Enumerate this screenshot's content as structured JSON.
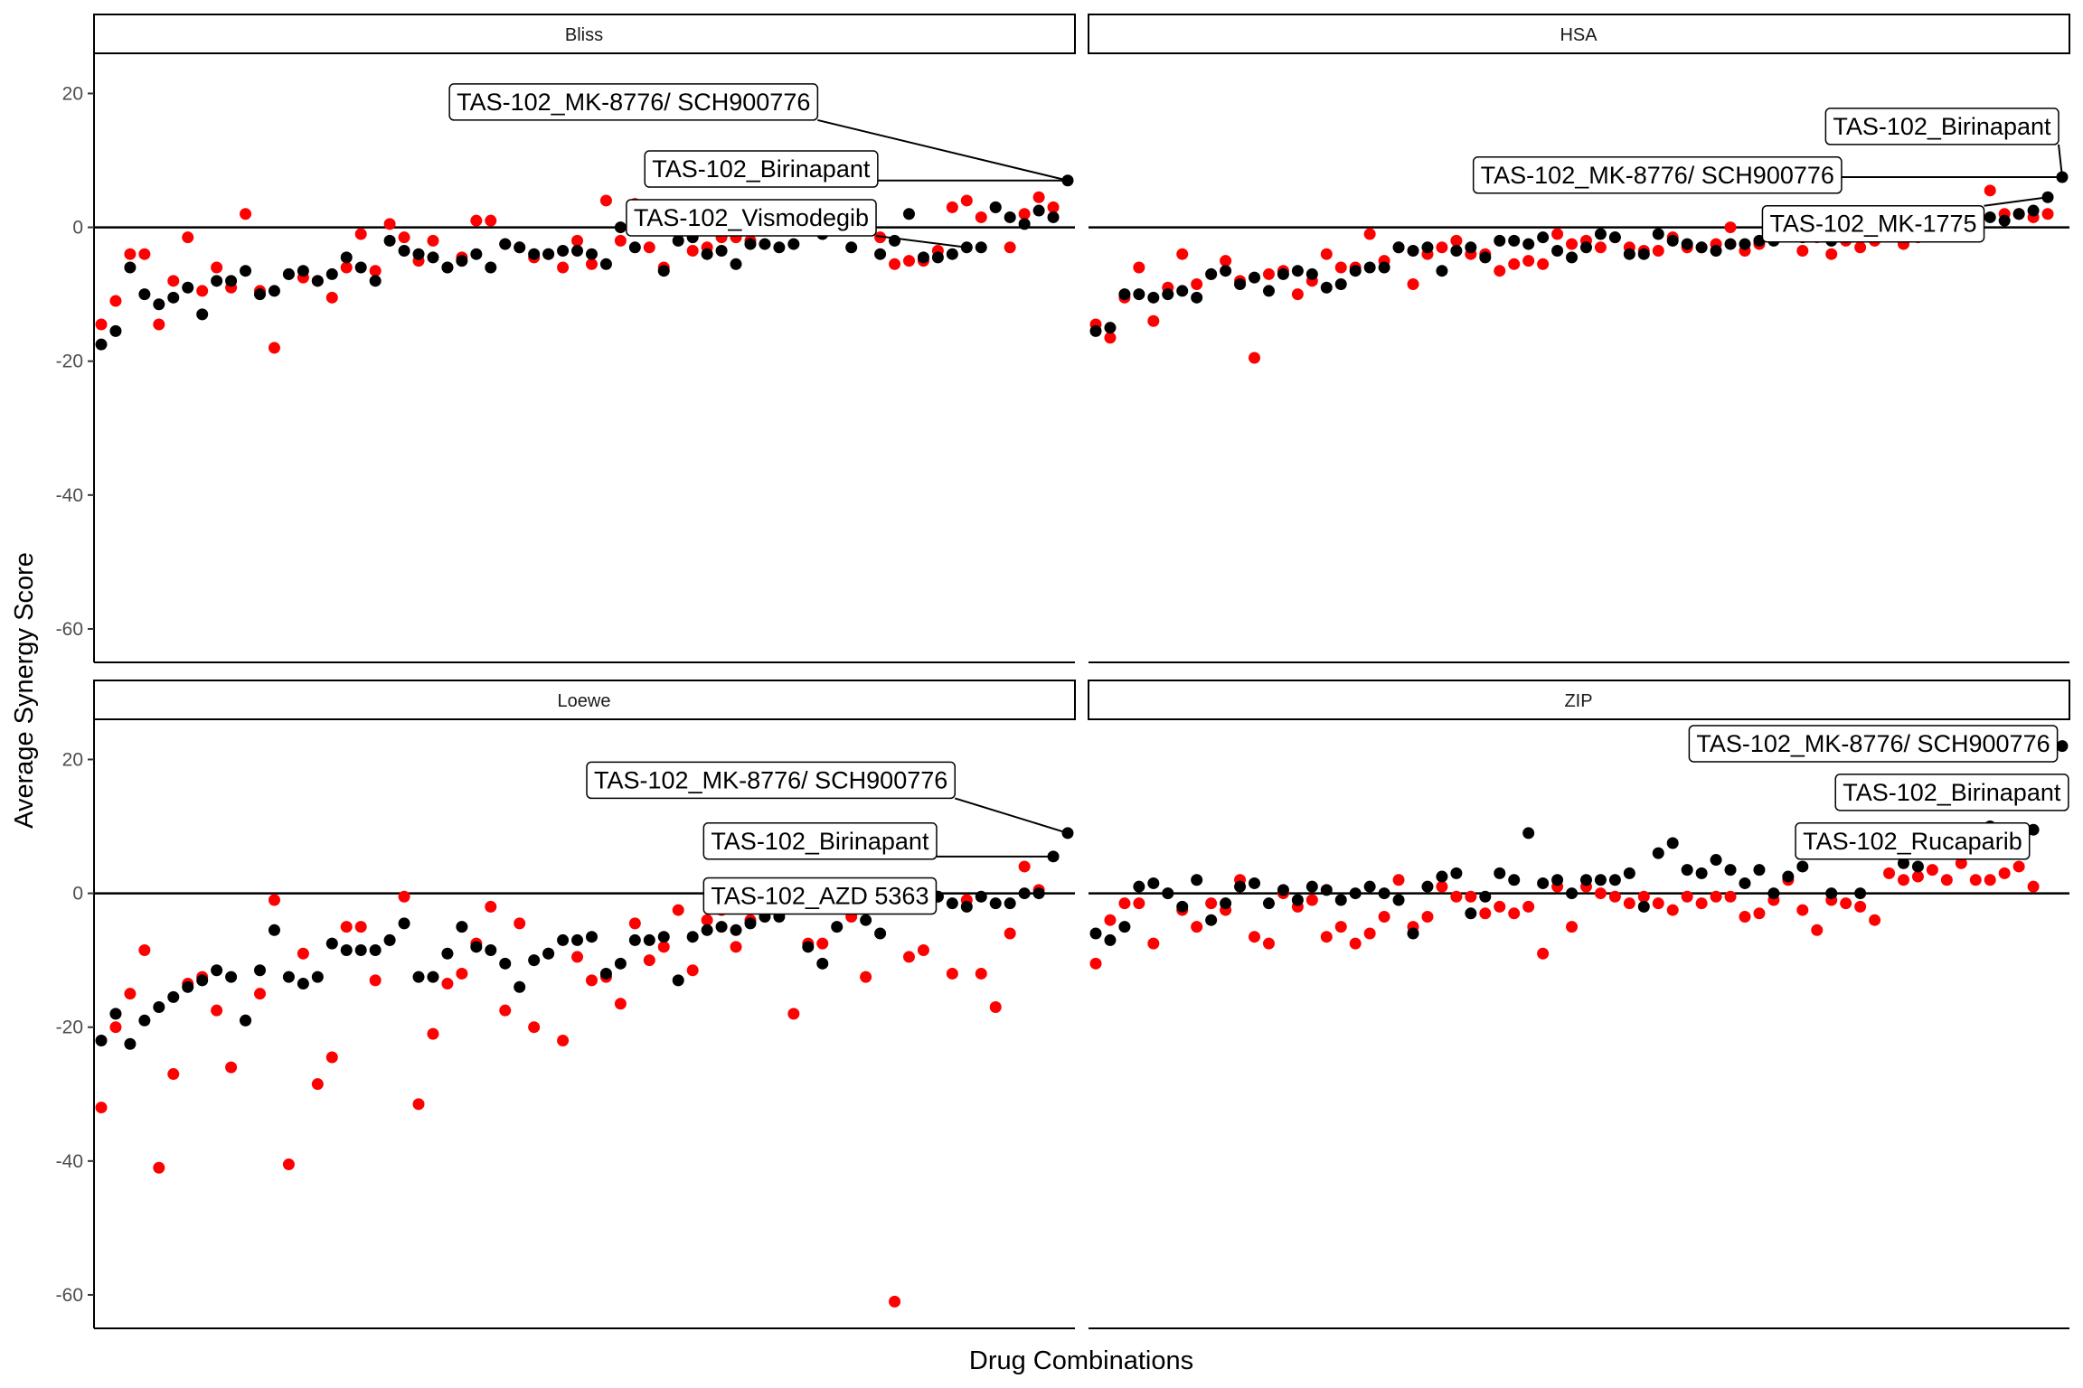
{
  "figure": {
    "xlabel": "Drug Combinations",
    "ylabel": "Average Synergy Score",
    "ylim": [
      -65,
      26
    ],
    "yticks": [
      20,
      0,
      -20,
      -40,
      -60
    ],
    "ytick_labels": [
      "20",
      "0",
      "-20",
      "-40",
      "-60"
    ],
    "x_count": 68,
    "series_colors": {
      "first": "#000000",
      "second": "#ff0000"
    },
    "hline": 0
  },
  "chart_data": [
    {
      "type": "scatter",
      "panel": "Bliss",
      "title": "Bliss",
      "series": [
        {
          "color": "#000000",
          "values": [
            -17.5,
            -15.5,
            -6,
            -10,
            -11.5,
            -10.5,
            -9,
            -13,
            -8,
            -8,
            -6.5,
            -10,
            -9.5,
            -7,
            -6.5,
            -8,
            -7,
            -4.5,
            -6,
            -8,
            -2,
            -3.5,
            -4,
            -4.5,
            -6,
            -5,
            -4,
            -6,
            -2.5,
            -3,
            -4,
            -4,
            -3.5,
            -3.5,
            -4,
            -5.5,
            0,
            -3,
            0,
            -6.5,
            -2,
            -1.5,
            -4,
            -3.5,
            -5.5,
            -2.5,
            -2.5,
            -3,
            -2.5,
            2,
            -1,
            2,
            -3,
            1.5,
            -4,
            -2,
            2,
            -4.5,
            -4.5,
            -4,
            -3,
            -3,
            3,
            1.5,
            0.5,
            2.5,
            1.5,
            7
          ]
        },
        {
          "color": "#ff0000",
          "values": [
            -14.5,
            -11,
            -4,
            -4,
            -14.5,
            -8,
            -1.5,
            -9.5,
            -6,
            -9,
            2,
            -9.5,
            -18,
            -7,
            -7.5,
            -8,
            -10.5,
            -6,
            -1,
            -6.5,
            0.5,
            -1.5,
            -5,
            -2,
            -6,
            -4.5,
            1,
            1,
            -2.5,
            -3,
            -4.5,
            -4,
            -6,
            -2,
            -5.5,
            4,
            -2,
            3.5,
            -3,
            -6,
            0.5,
            -3.5,
            -3,
            -1.5,
            -1.5,
            -2,
            2,
            1.5,
            2.5,
            3,
            1.5,
            3,
            2.5,
            3,
            -1.5,
            -5.5,
            -5,
            -5,
            -3.5,
            3,
            4,
            1.5,
            3,
            -3,
            2,
            4.5,
            3
          ]
        }
      ],
      "labels": [
        "TAS-102_MK-8776/ SCH900776",
        "TAS-102_Birinapant",
        "TAS-102_Vismodegib"
      ]
    },
    {
      "type": "scatter",
      "panel": "HSA",
      "title": "HSA",
      "series": [
        {
          "color": "#000000",
          "values": [
            -15.5,
            -15,
            -10,
            -10,
            -10.5,
            -10,
            -9.5,
            -10.5,
            -7,
            -6.5,
            -8.5,
            -7.5,
            -9.5,
            -7,
            -6.5,
            -7,
            -9,
            -8.5,
            -6.5,
            -6,
            -6,
            -3,
            -3.5,
            -3,
            -6.5,
            -3.5,
            -3,
            -4.5,
            -2,
            -2,
            -2.5,
            -1.5,
            -3.5,
            -4.5,
            -3,
            -1,
            -1.5,
            -4,
            -4,
            -1,
            -2,
            -2.5,
            -3,
            -3.5,
            -2.5,
            -2.5,
            -2,
            -2,
            -1,
            -1.5,
            0.5,
            -2,
            -1.5,
            -1,
            0,
            -1,
            -0.5,
            0,
            0.5,
            1,
            0,
            0.5,
            1.5,
            1,
            2,
            2.5,
            4.5,
            7.5
          ]
        },
        {
          "color": "#ff0000",
          "values": [
            -14.5,
            -16.5,
            -10.5,
            -6,
            -14,
            -9,
            -4,
            -8.5,
            -7,
            -5,
            -8,
            -19.5,
            -7,
            -6.5,
            -10,
            -8,
            -4,
            -6,
            -6,
            -1,
            -5,
            -3,
            -8.5,
            -4,
            -3,
            -2,
            -4,
            -4,
            -6.5,
            -5.5,
            -5,
            -5.5,
            -1,
            -2.5,
            -2,
            -3,
            -1.5,
            -3,
            -3.5,
            -3.5,
            -1.5,
            -3,
            -3,
            -2.5,
            0,
            -3.5,
            -2.5,
            -1.5,
            1,
            -3.5,
            -1.5,
            -4,
            -2,
            -3,
            -2,
            0.5,
            -2.5,
            -1.5,
            1,
            1,
            1.5,
            2,
            5.5,
            2,
            2,
            1.5,
            2
          ]
        }
      ],
      "labels": [
        "TAS-102_Birinapant",
        "TAS-102_MK-8776/ SCH900776",
        "TAS-102_MK-1775"
      ]
    },
    {
      "type": "scatter",
      "panel": "Loewe",
      "title": "Loewe",
      "series": [
        {
          "color": "#000000",
          "values": [
            -22,
            -18,
            -22.5,
            -19,
            -17,
            -15.5,
            -14,
            -13,
            -11.5,
            -12.5,
            -19,
            -11.5,
            -5.5,
            -12.5,
            -13.5,
            -12.5,
            -7.5,
            -8.5,
            -8.5,
            -8.5,
            -7,
            -4.5,
            -12.5,
            -12.5,
            -9,
            -5,
            -8,
            -8.5,
            -10.5,
            -14,
            -10,
            -9,
            -7,
            -7,
            -6.5,
            -12,
            -10.5,
            -7,
            -7,
            -6.5,
            -13,
            -6.5,
            -5.5,
            -5,
            -5.5,
            -4.5,
            -3.5,
            -3.5,
            -2,
            -8,
            -10.5,
            -5,
            -2,
            -4,
            -6,
            -2,
            -2,
            -1,
            -0.5,
            -1.5,
            -2,
            -0.5,
            -1.5,
            -1.5,
            0,
            0,
            5.5,
            9
          ]
        },
        {
          "color": "#ff0000",
          "values": [
            -32,
            -20,
            -15,
            -8.5,
            -41,
            -27,
            -13.5,
            -12.5,
            -17.5,
            -26,
            -19,
            -15,
            -1,
            -40.5,
            -9,
            -28.5,
            -24.5,
            -5,
            -5,
            -13,
            -7,
            -0.5,
            -31.5,
            -21,
            -13.5,
            -12,
            -7.5,
            -2,
            -17.5,
            -4.5,
            -20,
            -9,
            -22,
            -9.5,
            -13,
            -12.5,
            -16.5,
            -4.5,
            -10,
            -8,
            -2.5,
            -11.5,
            -4,
            -2.5,
            -8,
            -4,
            -1,
            0.5,
            -18,
            -7.5,
            -7.5,
            -1.5,
            -3.5,
            -12.5,
            -0.5,
            -61,
            -9.5,
            -8.5,
            -0.5,
            -12,
            -1,
            -12,
            -17,
            -6,
            4,
            0.5
          ]
        }
      ],
      "labels": [
        "TAS-102_MK-8776/ SCH900776",
        "TAS-102_Birinapant",
        "TAS-102_AZD 5363"
      ]
    },
    {
      "type": "scatter",
      "panel": "ZIP",
      "title": "ZIP",
      "series": [
        {
          "color": "#000000",
          "values": [
            -6,
            -7,
            -5,
            1,
            1.5,
            0,
            -2,
            2,
            -4,
            -1.5,
            1,
            1.5,
            -1.5,
            0.5,
            -1,
            1,
            0.5,
            -1,
            0,
            1,
            0,
            -1,
            -6,
            1,
            2.5,
            3,
            -3,
            -0.5,
            3,
            2,
            9,
            1.5,
            2,
            0,
            2,
            2,
            2,
            3,
            -2,
            6,
            7.5,
            3.5,
            3,
            5,
            3.5,
            1.5,
            3.5,
            0,
            2.5,
            4,
            7,
            0,
            8.5,
            0,
            8.5,
            7.5,
            4.5,
            4,
            6.5,
            8.5,
            9.5,
            9,
            10,
            9.5,
            9,
            9.5,
            15,
            22
          ]
        },
        {
          "color": "#ff0000",
          "values": [
            -10.5,
            -4,
            -1.5,
            -1.5,
            -7.5,
            0,
            -2.5,
            -5,
            -1.5,
            -2.5,
            2,
            -6.5,
            -7.5,
            0,
            -2,
            -1,
            -6.5,
            -5,
            -7.5,
            -6,
            -3.5,
            2,
            -5,
            -3.5,
            1,
            -0.5,
            -0.5,
            -3,
            -2,
            -3,
            -2,
            -9,
            1,
            -5,
            1,
            0,
            -0.5,
            -1.5,
            -0.5,
            -1.5,
            -2.5,
            -0.5,
            -1.5,
            -0.5,
            -0.5,
            -3.5,
            -3,
            -1,
            2,
            -2.5,
            -5.5,
            -1,
            -1.5,
            -2,
            -4,
            3,
            2,
            2.5,
            3.5,
            2,
            4.5,
            2,
            2,
            3,
            4,
            1
          ]
        }
      ],
      "labels": [
        "TAS-102_MK-8776/ SCH900776",
        "TAS-102_Birinapant",
        "TAS-102_Rucaparib"
      ]
    }
  ]
}
